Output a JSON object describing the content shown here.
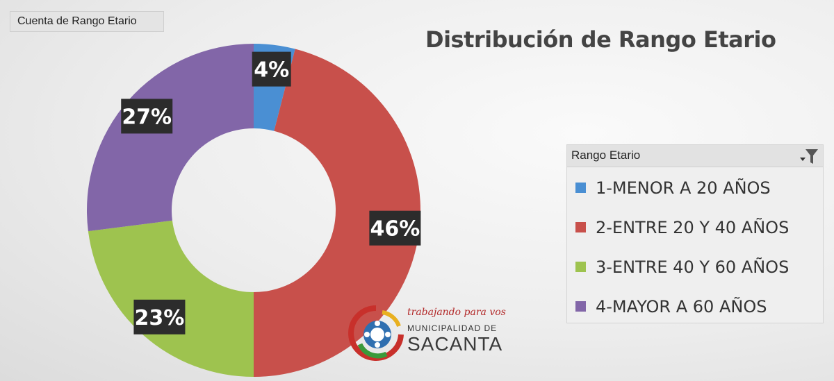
{
  "field_button": {
    "label": "Cuenta de Rango Etario"
  },
  "chart_data": {
    "type": "pie",
    "title": "Distribución de Rango Etario",
    "categories": [
      "1-MENOR A 20 AÑOS",
      "2-ENTRE 20 Y 40 AÑOS",
      "3-ENTRE 40 Y 60 AÑOS",
      "4-MAYOR A 60 AÑOS"
    ],
    "values": [
      4,
      46,
      23,
      27
    ],
    "data_labels": [
      "4%",
      "46%",
      "23%",
      "27%"
    ],
    "colors": [
      "#4a8fd3",
      "#c8504b",
      "#9ec34f",
      "#8266a8"
    ],
    "legend_title": "Rango Etario",
    "legend_position": "right"
  },
  "logo": {
    "tagline": "trabajando para vos",
    "org": "MUNICIPALIDAD DE",
    "city": "SACANTA"
  },
  "icons": {
    "filter": "filter-icon"
  }
}
